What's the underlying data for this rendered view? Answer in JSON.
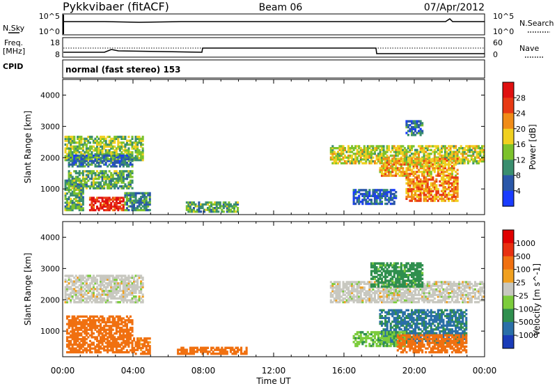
{
  "header": {
    "radar": "Pykkvibaer (fitACF)",
    "beam": "Beam 06",
    "date": "07/Apr/2012"
  },
  "strip": {
    "nsky_label": "N.Sky",
    "nsearch_label": "N.Search",
    "noise_ticks": [
      "10^5",
      "10^0"
    ],
    "freq_label": "Freq.",
    "freq_unit": "[MHz]",
    "freq_ticks": [
      "18",
      "8"
    ],
    "nave_label": "Nave",
    "nave_ticks": [
      "60",
      "0"
    ],
    "cpid_label": "CPID",
    "cpid_text": "normal (fast stereo) 153"
  },
  "chart_data": [
    {
      "type": "heatmap",
      "panel": "power",
      "ylabel": "Slant Range [km]",
      "xlabel": "Time UT",
      "x_ticks": [
        "00:00",
        "04:00",
        "08:00",
        "12:00",
        "16:00",
        "20:00",
        "00:00"
      ],
      "xlim_hours": [
        0,
        24
      ],
      "y_ticks": [
        1000,
        2000,
        3000,
        4000
      ],
      "ylim": [
        180,
        4500
      ],
      "colorbar": {
        "label": "Power [dB]",
        "ticks": [
          "4",
          "8",
          "12",
          "16",
          "20",
          "24",
          "28"
        ],
        "colors": [
          "#1a3cff",
          "#2a57a8",
          "#3a8e6e",
          "#7cc22c",
          "#f0d020",
          "#f08c18",
          "#e83a14",
          "#e01010"
        ],
        "range": [
          0,
          32
        ]
      },
      "regions": [
        {
          "t0": 0.1,
          "t1": 4.6,
          "r0": 1900,
          "r1": 2700,
          "value": 14
        },
        {
          "t0": 0.3,
          "t1": 4.0,
          "r0": 1700,
          "r1": 2100,
          "value": 8
        },
        {
          "t0": 0.3,
          "t1": 4.0,
          "r0": 1000,
          "r1": 1600,
          "value": 12
        },
        {
          "t0": 1.5,
          "t1": 3.5,
          "r0": 300,
          "r1": 750,
          "value": 28
        },
        {
          "t0": 0.1,
          "t1": 1.2,
          "r0": 300,
          "r1": 1300,
          "value": 12
        },
        {
          "t0": 3.5,
          "t1": 5.0,
          "r0": 300,
          "r1": 900,
          "value": 10
        },
        {
          "t0": 7.0,
          "t1": 10.0,
          "r0": 250,
          "r1": 600,
          "value": 12
        },
        {
          "t0": 15.2,
          "t1": 24.0,
          "r0": 1800,
          "r1": 2400,
          "value": 16
        },
        {
          "t0": 18.0,
          "t1": 22.5,
          "r0": 1400,
          "r1": 2000,
          "value": 20
        },
        {
          "t0": 19.5,
          "t1": 22.5,
          "r0": 600,
          "r1": 1400,
          "value": 22
        },
        {
          "t0": 16.5,
          "t1": 19.0,
          "r0": 500,
          "r1": 1000,
          "value": 6
        },
        {
          "t0": 19.5,
          "t1": 20.5,
          "r0": 2700,
          "r1": 3200,
          "value": 8
        }
      ]
    },
    {
      "type": "heatmap",
      "panel": "velocity",
      "ylabel": "Slant Range [km]",
      "xlabel": "Time UT",
      "x_ticks": [
        "00:00",
        "04:00",
        "08:00",
        "12:00",
        "16:00",
        "20:00",
        "00:00"
      ],
      "xlim_hours": [
        0,
        24
      ],
      "y_ticks": [
        1000,
        2000,
        3000,
        4000
      ],
      "ylim": [
        180,
        4500
      ],
      "colorbar": {
        "label": "Velocity [m s^-1]",
        "ticks": [
          "1000",
          "500",
          "100",
          "25",
          "-25",
          "-100",
          "-500",
          "-1000"
        ],
        "colors": [
          "#1a3cb8",
          "#2a6fa8",
          "#2f8f4e",
          "#7ccc3c",
          "#c8c8c0",
          "#f0a020",
          "#f07010",
          "#e83010",
          "#e00000"
        ]
      },
      "regions": [
        {
          "t0": 0.1,
          "t1": 4.6,
          "r0": 1900,
          "r1": 2800,
          "value": 0
        },
        {
          "t0": 0.2,
          "t1": 4.0,
          "r0": 300,
          "r1": 1500,
          "value": -300
        },
        {
          "t0": 4.0,
          "t1": 5.0,
          "r0": 250,
          "r1": 800,
          "value": -150
        },
        {
          "t0": 6.5,
          "t1": 10.5,
          "r0": 250,
          "r1": 500,
          "value": -200
        },
        {
          "t0": 15.2,
          "t1": 24.0,
          "r0": 1900,
          "r1": 2600,
          "value": 0
        },
        {
          "t0": 17.5,
          "t1": 20.5,
          "r0": 2400,
          "r1": 3200,
          "value": 150
        },
        {
          "t0": 18.0,
          "t1": 23.0,
          "r0": 600,
          "r1": 1700,
          "value": 600
        },
        {
          "t0": 16.5,
          "t1": 19.5,
          "r0": 500,
          "r1": 1000,
          "value": 80
        },
        {
          "t0": 19.0,
          "t1": 23.0,
          "r0": 300,
          "r1": 900,
          "value": -200
        }
      ]
    }
  ]
}
